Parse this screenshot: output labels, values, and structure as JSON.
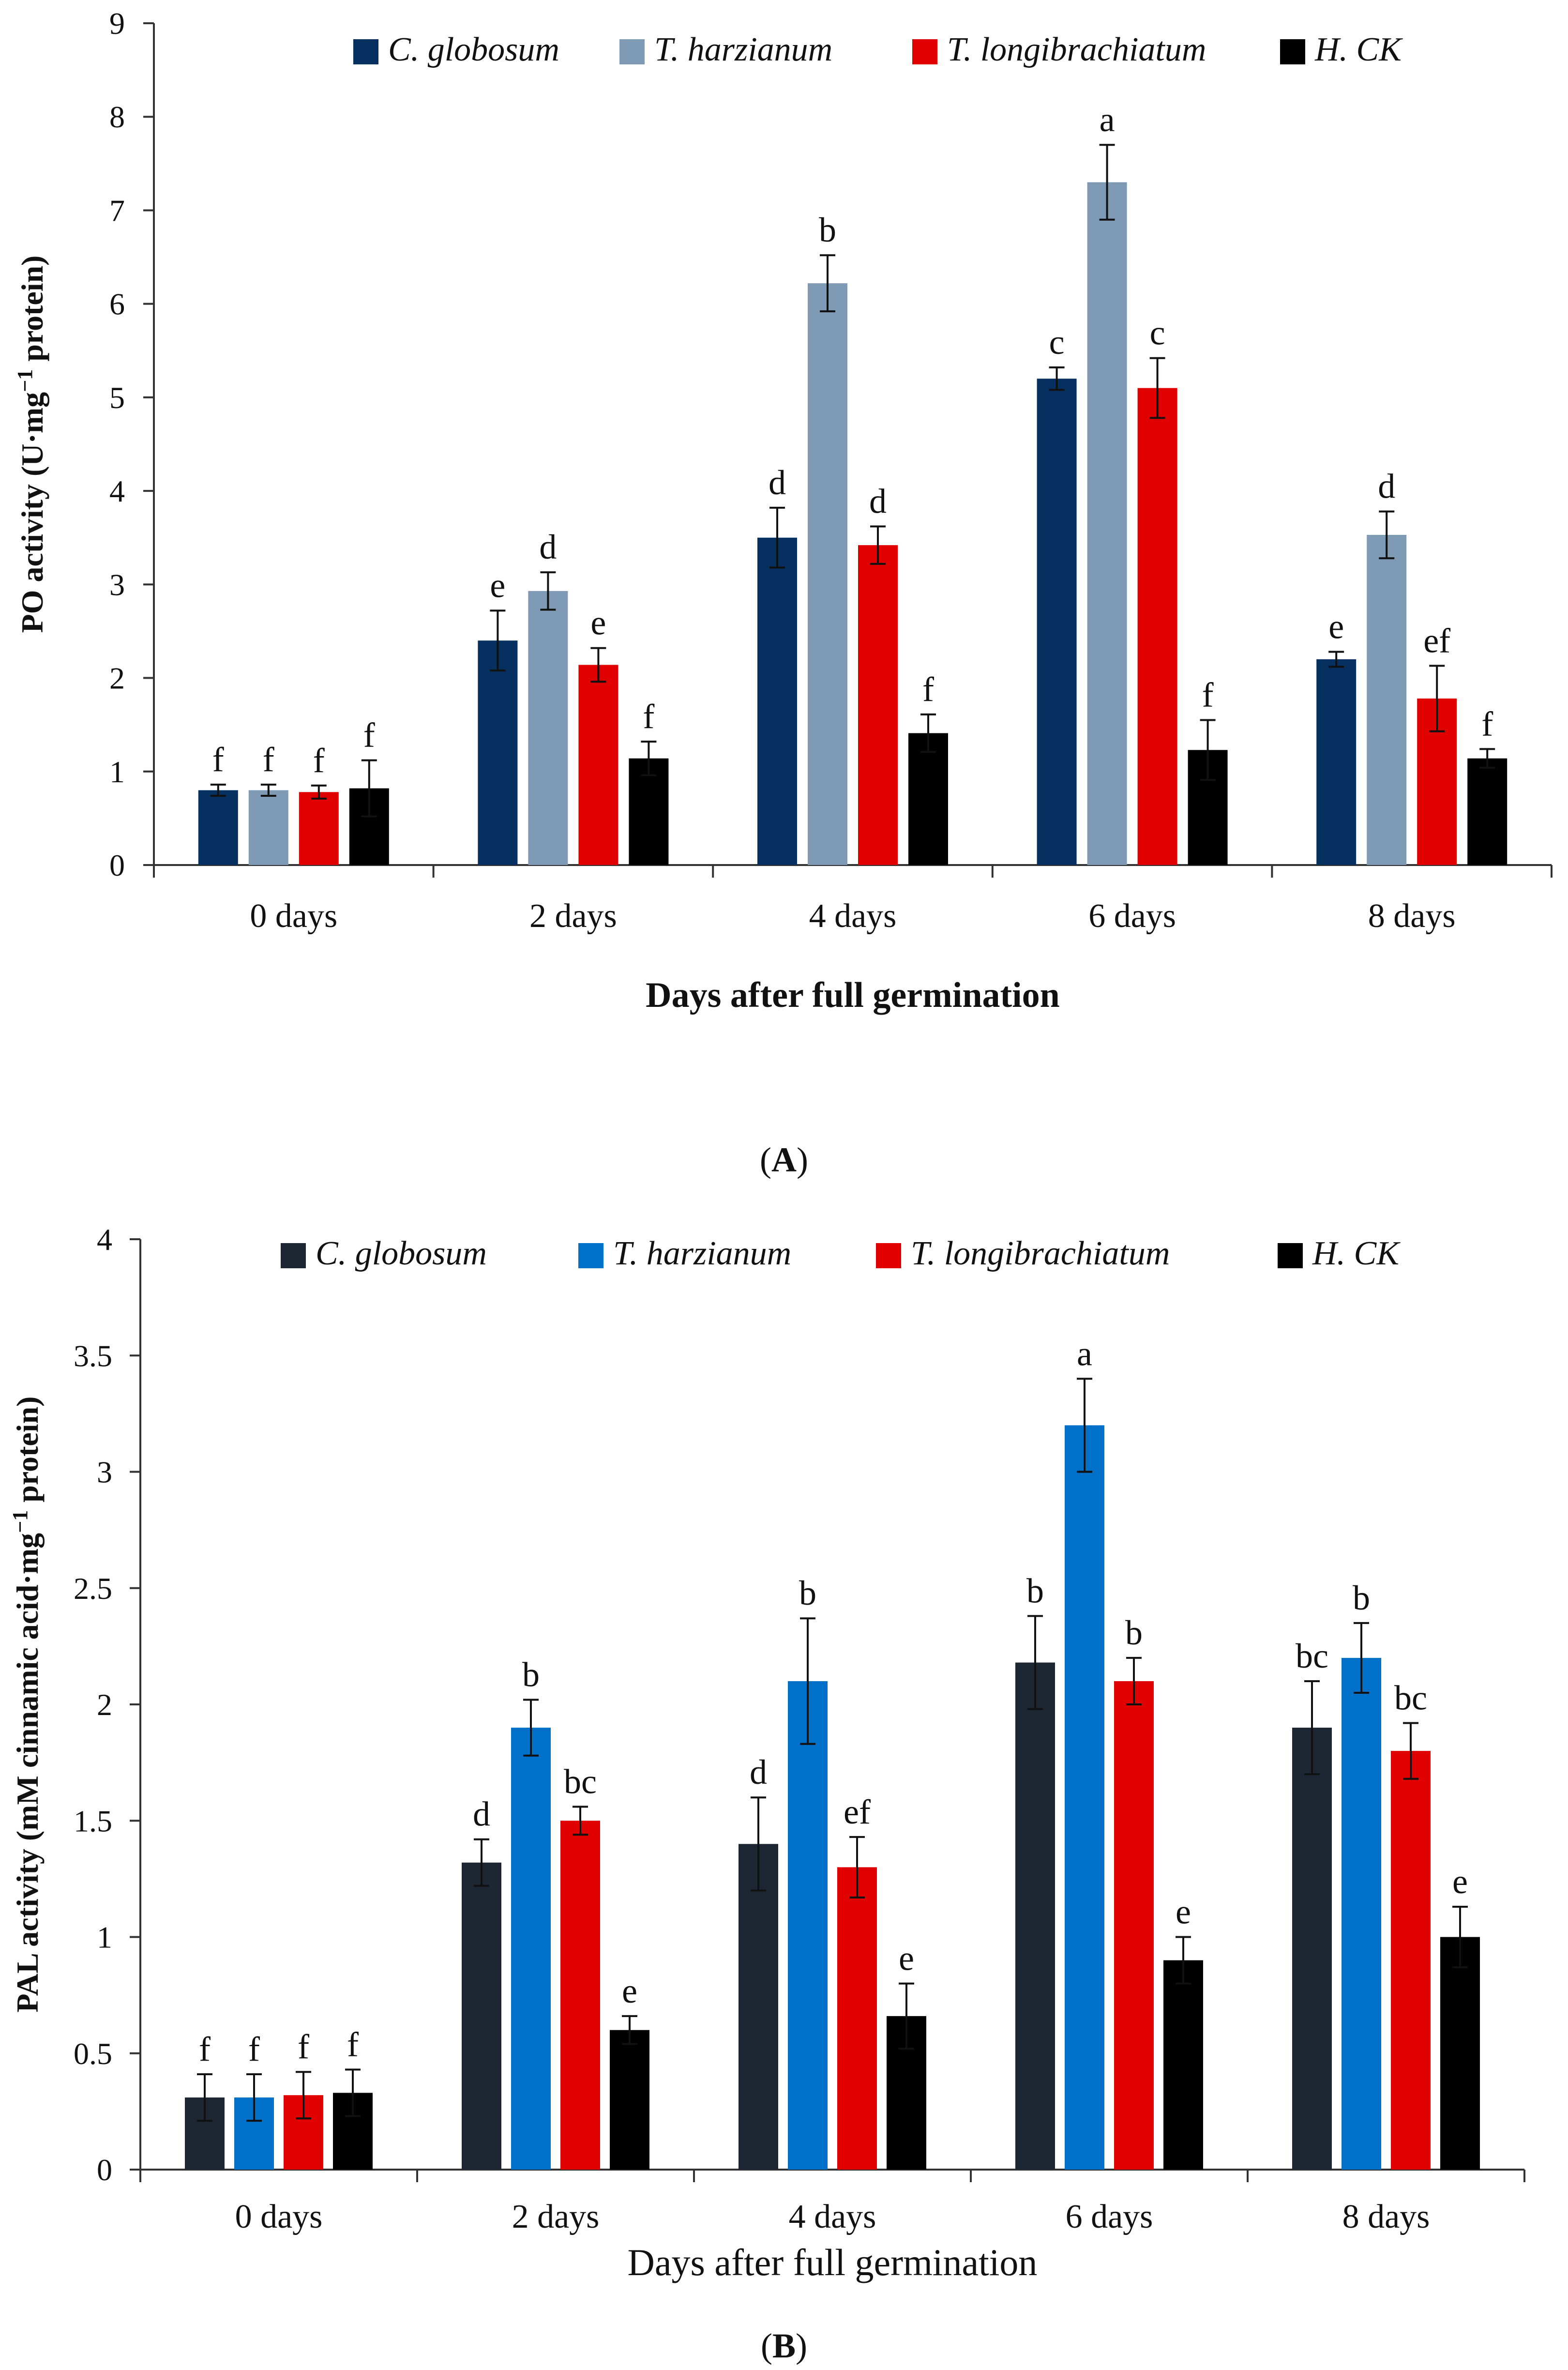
{
  "chart_data": [
    {
      "id": "A",
      "type": "bar",
      "panel_label_open": "(",
      "panel_label_letter": "A",
      "panel_label_close": ")",
      "xlabel": "Days after full germination",
      "ylabel_pre": "PO activity (U·mg",
      "ylabel_sup": "−1",
      "ylabel_post": " protein)",
      "ylim": [
        0,
        9
      ],
      "yticks": [
        "0",
        "1",
        "2",
        "3",
        "4",
        "5",
        "6",
        "7",
        "8",
        "9"
      ],
      "yticks_values": [
        0,
        1,
        2,
        3,
        4,
        5,
        6,
        7,
        8,
        9
      ],
      "categories": [
        "0 days",
        "2 days",
        "4 days",
        "6 days",
        "8 days"
      ],
      "legend_position": "top",
      "series": [
        {
          "name": "C. globosum",
          "color": "#06305f",
          "values": [
            0.8,
            2.4,
            3.5,
            5.2,
            2.2
          ],
          "errors": [
            0.06,
            0.32,
            0.32,
            0.12,
            0.08
          ],
          "letters": [
            "f",
            "e",
            "d",
            "c",
            "e"
          ]
        },
        {
          "name": "T. harzianum",
          "color": "#7f9ab5",
          "values": [
            0.8,
            2.93,
            6.22,
            7.3,
            3.53
          ],
          "errors": [
            0.06,
            0.2,
            0.3,
            0.4,
            0.25
          ],
          "letters": [
            "f",
            "d",
            "b",
            "a",
            "d"
          ]
        },
        {
          "name": "T. longibrachiatum",
          "color": "#e00000",
          "values": [
            0.78,
            2.14,
            3.42,
            5.1,
            1.78
          ],
          "errors": [
            0.07,
            0.18,
            0.2,
            0.32,
            0.35
          ],
          "letters": [
            "f",
            "e",
            "d",
            "c",
            "ef"
          ]
        },
        {
          "name": "H. CK",
          "color": "#000000",
          "values": [
            0.82,
            1.14,
            1.41,
            1.23,
            1.14
          ],
          "errors": [
            0.3,
            0.18,
            0.2,
            0.32,
            0.1
          ],
          "letters": [
            "f",
            "f",
            "f",
            "f",
            "f"
          ]
        }
      ]
    },
    {
      "id": "B",
      "type": "bar",
      "panel_label_open": "(",
      "panel_label_letter": "B",
      "panel_label_close": ")",
      "xlabel": "Days after full germination",
      "ylabel_pre": "PAL activity (mM cinnamic acid·mg",
      "ylabel_sup": "−1",
      "ylabel_post": " protein)",
      "ylim": [
        0,
        4
      ],
      "yticks": [
        "0",
        "0.5",
        "1",
        "1.5",
        "2",
        "2.5",
        "3",
        "3.5",
        "4"
      ],
      "yticks_values": [
        0,
        0.5,
        1,
        1.5,
        2,
        2.5,
        3,
        3.5,
        4
      ],
      "categories": [
        "0 days",
        "2 days",
        "4 days",
        "6 days",
        "8 days"
      ],
      "legend_position": "top",
      "series": [
        {
          "name": "C. globosum",
          "color": "#1c2733",
          "values": [
            0.31,
            1.32,
            1.4,
            2.18,
            1.9
          ],
          "errors": [
            0.1,
            0.1,
            0.2,
            0.2,
            0.2
          ],
          "letters": [
            "f",
            "d",
            "d",
            "b",
            "bc"
          ]
        },
        {
          "name": "T. harzianum",
          "color": "#0070c8",
          "values": [
            0.31,
            1.9,
            2.1,
            3.2,
            2.2
          ],
          "errors": [
            0.1,
            0.12,
            0.27,
            0.2,
            0.15
          ],
          "letters": [
            "f",
            "b",
            "b",
            "a",
            "b"
          ]
        },
        {
          "name": "T. longibrachiatum",
          "color": "#e00000",
          "values": [
            0.32,
            1.5,
            1.3,
            2.1,
            1.8
          ],
          "errors": [
            0.1,
            0.06,
            0.13,
            0.1,
            0.12
          ],
          "letters": [
            "f",
            "bc",
            "ef",
            "b",
            "bc"
          ]
        },
        {
          "name": "H. CK",
          "color": "#000000",
          "values": [
            0.33,
            0.6,
            0.66,
            0.9,
            1.0
          ],
          "errors": [
            0.1,
            0.06,
            0.14,
            0.1,
            0.13
          ],
          "letters": [
            "f",
            "e",
            "e",
            "e",
            "e"
          ]
        }
      ]
    }
  ]
}
